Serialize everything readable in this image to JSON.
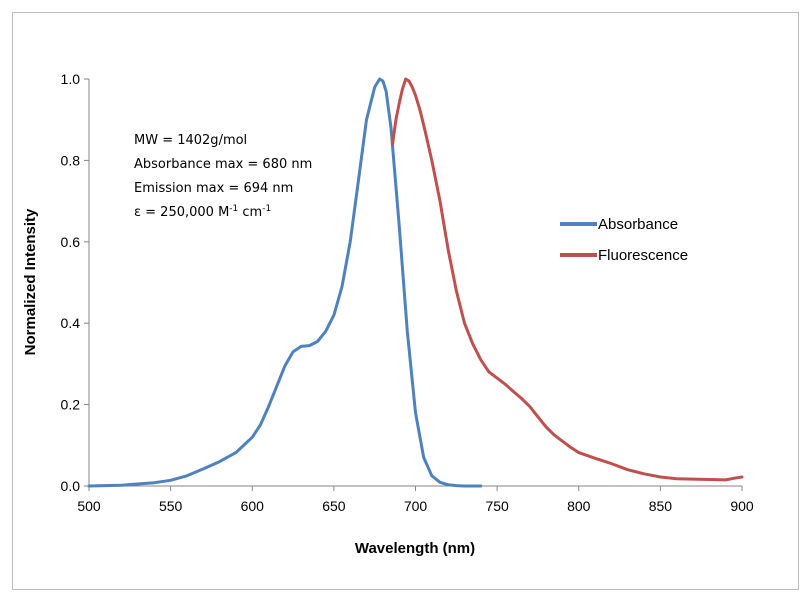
{
  "chart_data": {
    "type": "line",
    "xlabel": "Wavelength (nm)",
    "ylabel": "Normalized Intensity",
    "xlim": [
      500,
      900
    ],
    "ylim": [
      0,
      1.0
    ],
    "xticks": [
      "500",
      "550",
      "600",
      "650",
      "700",
      "750",
      "800",
      "850",
      "900"
    ],
    "yticks": [
      "0.0",
      "0.2",
      "0.4",
      "0.6",
      "0.8",
      "1.0"
    ],
    "grid": false,
    "legend_position": "right",
    "annotations": [
      "MW = 1402g/mol",
      "Absorbance max = 680 nm",
      "Emission max = 694 nm"
    ],
    "annotation_epsilon": {
      "prefix": "ε = 250,000 M",
      "sup1": "-1",
      "mid": " cm",
      "sup2": "-1"
    },
    "series": [
      {
        "name": "Absorbance",
        "color": "#4f81bd",
        "x": [
          500,
          520,
          540,
          550,
          560,
          570,
          580,
          590,
          600,
          605,
          610,
          615,
          620,
          625,
          630,
          635,
          640,
          645,
          650,
          655,
          660,
          665,
          670,
          675,
          678,
          680,
          682,
          685,
          690,
          695,
          700,
          705,
          710,
          715,
          720,
          725,
          730,
          735,
          740
        ],
        "y": [
          0.0,
          0.002,
          0.008,
          0.014,
          0.025,
          0.042,
          0.06,
          0.082,
          0.12,
          0.15,
          0.195,
          0.245,
          0.295,
          0.33,
          0.343,
          0.345,
          0.355,
          0.38,
          0.42,
          0.49,
          0.6,
          0.75,
          0.9,
          0.98,
          1.0,
          0.995,
          0.97,
          0.88,
          0.64,
          0.38,
          0.18,
          0.07,
          0.025,
          0.009,
          0.003,
          0.001,
          0.0,
          0.0,
          0.0
        ]
      },
      {
        "name": "Fluorescence",
        "color": "#c0504d",
        "x": [
          686,
          688,
          690,
          692,
          694,
          696,
          698,
          700,
          703,
          706,
          710,
          715,
          720,
          725,
          730,
          735,
          740,
          745,
          750,
          755,
          760,
          765,
          770,
          775,
          780,
          785,
          790,
          795,
          800,
          810,
          820,
          830,
          840,
          850,
          860,
          870,
          880,
          890,
          895,
          900
        ],
        "y": [
          0.84,
          0.9,
          0.94,
          0.975,
          1.0,
          0.995,
          0.98,
          0.96,
          0.92,
          0.87,
          0.8,
          0.7,
          0.58,
          0.48,
          0.4,
          0.35,
          0.31,
          0.28,
          0.265,
          0.25,
          0.232,
          0.215,
          0.195,
          0.17,
          0.145,
          0.125,
          0.11,
          0.095,
          0.082,
          0.068,
          0.055,
          0.04,
          0.03,
          0.022,
          0.018,
          0.017,
          0.016,
          0.015,
          0.019,
          0.022
        ]
      }
    ]
  }
}
